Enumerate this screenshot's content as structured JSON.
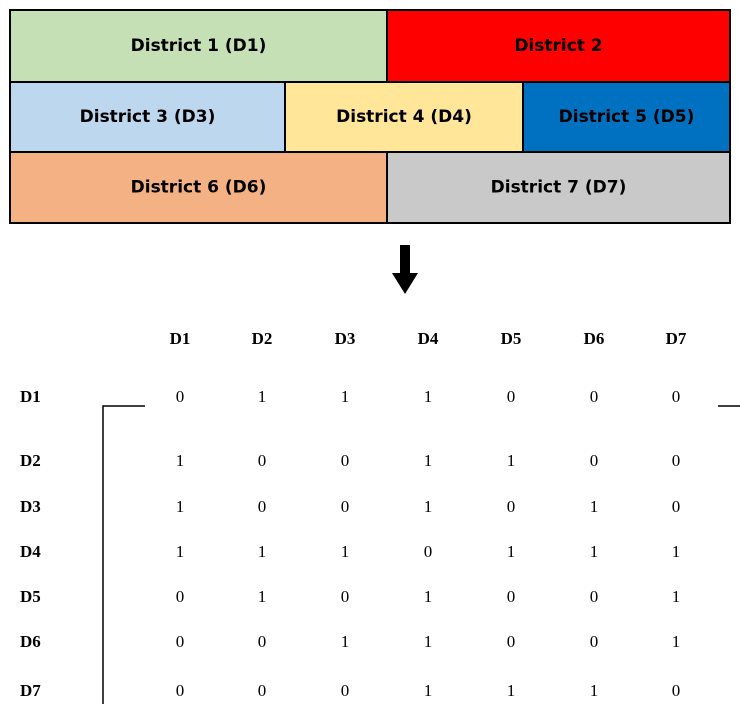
{
  "map": {
    "rows": [
      [
        {
          "label": "District 1 (D1)",
          "color": "#c5e0b4"
        },
        {
          "label": "District 2",
          "color": "#ff0000"
        }
      ],
      [
        {
          "label": "District 3 (D3)",
          "color": "#bdd7ee"
        },
        {
          "label": "District 4 (D4)",
          "color": "#ffe699"
        },
        {
          "label": "District 5 (D5)",
          "color": "#0070c0"
        }
      ],
      [
        {
          "label": "District 6 (D6)",
          "color": "#f4b183"
        },
        {
          "label": "District 7 (D7)",
          "color": "#c9c9c9"
        }
      ]
    ]
  },
  "matrix": {
    "columns": [
      "D1",
      "D2",
      "D3",
      "D4",
      "D5",
      "D6",
      "D7"
    ],
    "rows": [
      {
        "label": "D1",
        "values": [
          0,
          1,
          1,
          1,
          0,
          0,
          0
        ]
      },
      {
        "label": "D2",
        "values": [
          1,
          0,
          0,
          1,
          1,
          0,
          0
        ]
      },
      {
        "label": "D3",
        "values": [
          1,
          0,
          0,
          1,
          0,
          1,
          0
        ]
      },
      {
        "label": "D4",
        "values": [
          1,
          1,
          1,
          0,
          1,
          1,
          1
        ]
      },
      {
        "label": "D5",
        "values": [
          0,
          1,
          0,
          1,
          0,
          0,
          1
        ]
      },
      {
        "label": "D6",
        "values": [
          0,
          0,
          1,
          1,
          0,
          0,
          1
        ]
      },
      {
        "label": "D7",
        "values": [
          0,
          0,
          0,
          1,
          1,
          1,
          0
        ]
      }
    ]
  }
}
